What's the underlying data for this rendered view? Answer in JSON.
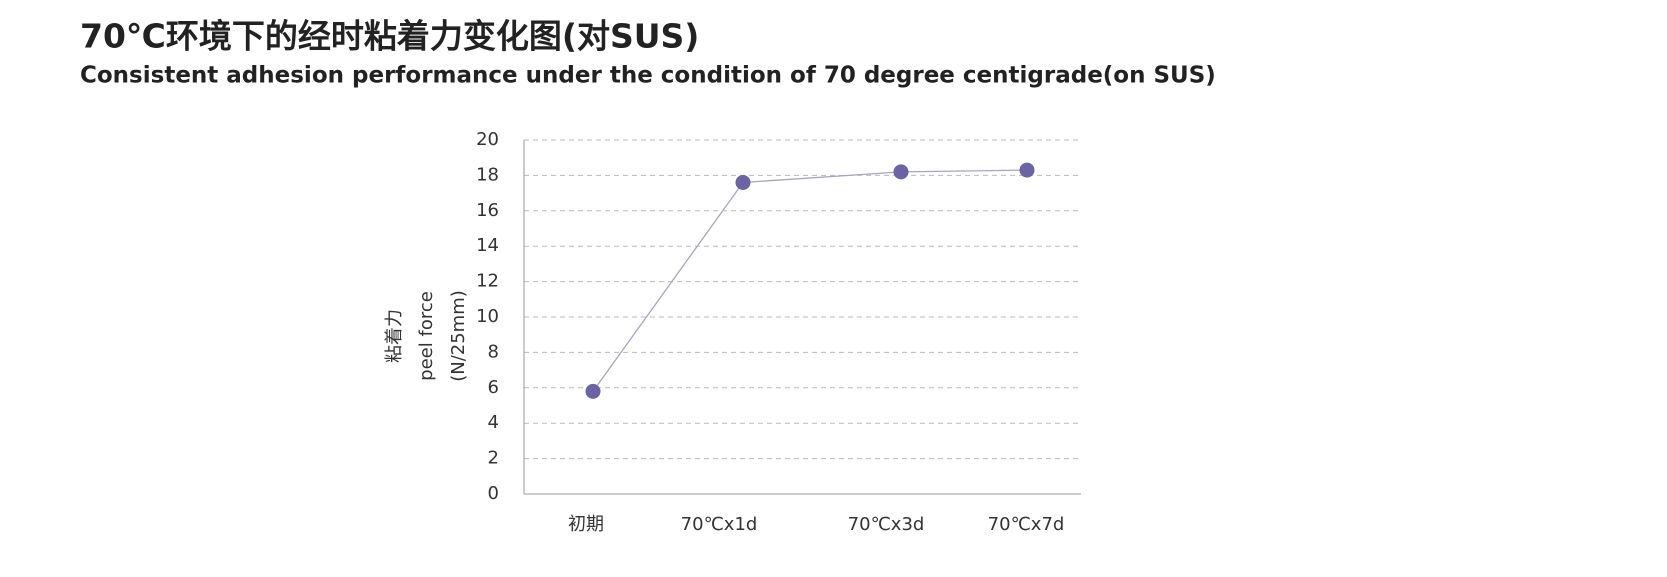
{
  "chart_data": {
    "type": "line",
    "title": "70℃环境下的经时粘着力变化图(对SUS)",
    "subtitle": "Consistent  adhesion performance under the condition of 70 degree centigrade(on SUS)",
    "y_label": [
      "粘着力",
      "peel force",
      "(N/25mm)"
    ],
    "categories": [
      "初期",
      "70℃x1d",
      "70℃x3d",
      "70℃x7d"
    ],
    "series": [
      {
        "name": "peel force",
        "color": "#6b64a3",
        "values": [
          5.8,
          17.6,
          18.2,
          18.3
        ]
      }
    ],
    "ylim": [
      0,
      20
    ],
    "yticks": [
      0,
      2,
      4,
      6,
      8,
      10,
      12,
      14,
      16,
      18,
      20
    ],
    "grid": true
  }
}
